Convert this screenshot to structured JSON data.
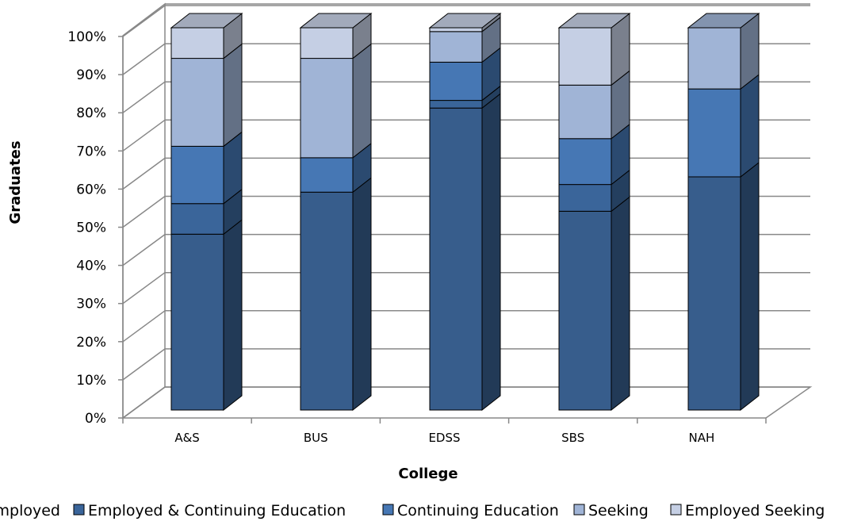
{
  "chart_data": {
    "type": "bar",
    "stacked": true,
    "three_d": true,
    "categories": [
      "A&S",
      "BUS",
      "EDSS",
      "SBS",
      "NAH"
    ],
    "series": [
      {
        "name": "Employed",
        "values": [
          46,
          57,
          79,
          52,
          61
        ],
        "color": "#375D8C"
      },
      {
        "name": "Employed & Continuing Education",
        "values": [
          8,
          0,
          2,
          7,
          0
        ],
        "color": "#3A659A"
      },
      {
        "name": "Continuing Education",
        "values": [
          15,
          9,
          10,
          12,
          23
        ],
        "color": "#4677B4"
      },
      {
        "name": "Seeking",
        "values": [
          23,
          26,
          8,
          14,
          16
        ],
        "color": "#A0B4D6"
      },
      {
        "name": "Employed Seeking",
        "values": [
          8,
          8,
          1,
          15,
          0
        ],
        "color": "#C5CFE4"
      }
    ],
    "xlabel": "College",
    "ylabel": "Graduates",
    "yticks": [
      "0%",
      "10%",
      "20%",
      "30%",
      "40%",
      "50%",
      "60%",
      "70%",
      "80%",
      "90%",
      "100%"
    ],
    "ylim": [
      0,
      100
    ],
    "grid": true,
    "legend_position": "bottom"
  }
}
